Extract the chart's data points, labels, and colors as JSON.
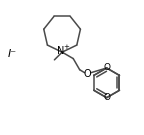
{
  "line_color": "#4a4a4a",
  "bg_color": "#ffffff",
  "font_color": "#000000",
  "line_width": 1.1,
  "figsize": [
    1.44,
    1.35
  ],
  "dpi": 100,
  "iodide_label": "I⁻",
  "n_label": "N",
  "n_plus": "+",
  "o_label": "O"
}
